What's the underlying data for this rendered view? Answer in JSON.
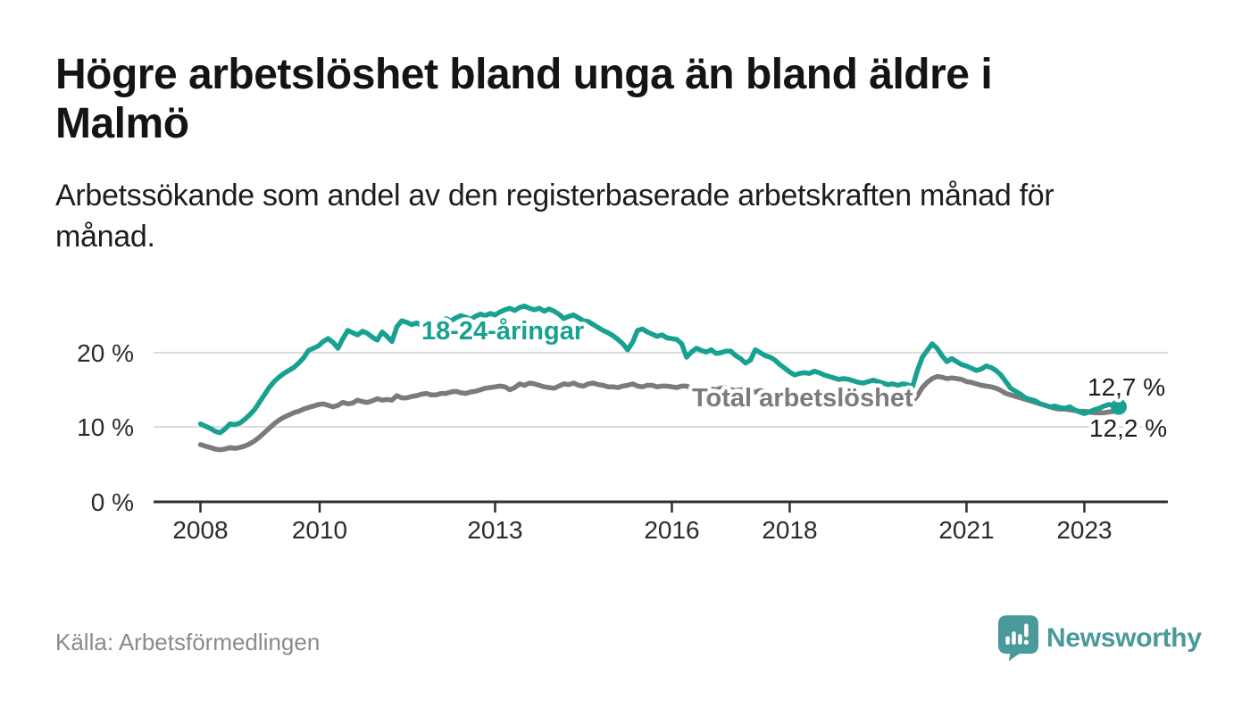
{
  "header": {
    "title": "Högre arbetslöshet bland unga än bland äldre i Malmö",
    "subtitle": "Arbetssökande som andel av den registerbaserade arbetskraften månad för månad."
  },
  "chart_data": {
    "type": "line",
    "title": "Högre arbetslöshet bland unga än bland äldre i Malmö",
    "subtitle": "Arbetssökande som andel av den registerbaserade arbetskraften månad för månad.",
    "unit": "percent",
    "grid": "horizontal",
    "legend_position": "inline-labels-on-lines",
    "x_axis": {
      "interval": "monthly",
      "start": "2008-01",
      "end": "2023-08",
      "ticks": [
        "2008",
        "2010",
        "2013",
        "2016",
        "2018",
        "2021",
        "2023"
      ]
    },
    "y_axis": {
      "tick_labels": [
        "0 %",
        "10 %",
        "20 %"
      ],
      "tick_values": [
        0,
        10,
        20
      ],
      "range": [
        0,
        27
      ]
    },
    "series": [
      {
        "id": "young",
        "name": "18-24-åringar",
        "color": "#18a191",
        "end_label": "12,7 %",
        "end_value": 12.7,
        "values": [
          10.4,
          10.1,
          9.8,
          9.4,
          9.2,
          9.7,
          10.4,
          10.3,
          10.5,
          11.0,
          11.6,
          12.3,
          13.3,
          14.3,
          15.3,
          16.1,
          16.7,
          17.2,
          17.6,
          18.0,
          18.6,
          19.3,
          20.3,
          20.6,
          20.9,
          21.5,
          21.9,
          21.4,
          20.6,
          21.9,
          23.0,
          22.7,
          22.4,
          22.9,
          22.6,
          22.1,
          21.7,
          22.8,
          22.2,
          21.5,
          23.5,
          24.3,
          24.1,
          23.8,
          24.0,
          23.7,
          23.4,
          23.8,
          23.9,
          24.2,
          24.6,
          24.3,
          24.7,
          25.0,
          24.8,
          24.5,
          24.9,
          25.2,
          25.0,
          25.3,
          25.1,
          25.5,
          25.8,
          26.0,
          25.7,
          26.1,
          26.3,
          26.0,
          25.8,
          26.0,
          25.6,
          25.9,
          25.6,
          25.2,
          24.6,
          24.9,
          25.1,
          24.7,
          24.3,
          24.2,
          23.8,
          23.4,
          23.0,
          22.7,
          22.3,
          21.8,
          21.2,
          20.4,
          21.4,
          23.0,
          23.2,
          22.8,
          22.5,
          22.2,
          22.4,
          22.0,
          21.9,
          21.8,
          21.2,
          19.4,
          20.1,
          20.6,
          20.3,
          20.1,
          20.4,
          19.9,
          20.0,
          20.2,
          20.2,
          19.6,
          19.2,
          18.6,
          19.0,
          20.4,
          20.0,
          19.6,
          19.4,
          19.0,
          18.4,
          17.9,
          17.4,
          17.0,
          17.2,
          17.3,
          17.2,
          17.5,
          17.3,
          17.0,
          16.8,
          16.6,
          16.4,
          16.5,
          16.4,
          16.2,
          16.0,
          15.9,
          16.1,
          16.3,
          16.1,
          15.9,
          15.7,
          15.8,
          15.6,
          15.8,
          15.7,
          15.4,
          17.6,
          19.4,
          20.3,
          21.2,
          20.6,
          19.6,
          18.8,
          19.2,
          18.8,
          18.4,
          18.2,
          17.9,
          17.6,
          17.8,
          18.2,
          18.0,
          17.6,
          17.0,
          16.1,
          15.2,
          14.8,
          14.4,
          13.9,
          13.7,
          13.5,
          13.1,
          12.9,
          12.7,
          12.8,
          12.6,
          12.5,
          12.7,
          12.3,
          12.0,
          11.8,
          12.0,
          12.3,
          12.5,
          12.8,
          13.0,
          12.9,
          12.7
        ]
      },
      {
        "id": "total",
        "name": "Total arbetslöshet",
        "color": "#7b7b7b",
        "end_label": "12,2 %",
        "end_value": 12.2,
        "values": [
          7.6,
          7.4,
          7.2,
          7.0,
          6.9,
          7.0,
          7.2,
          7.1,
          7.2,
          7.4,
          7.7,
          8.1,
          8.6,
          9.2,
          9.8,
          10.4,
          10.9,
          11.3,
          11.6,
          11.9,
          12.1,
          12.4,
          12.6,
          12.8,
          13.0,
          13.1,
          12.9,
          12.7,
          12.9,
          13.3,
          13.1,
          13.2,
          13.6,
          13.4,
          13.3,
          13.5,
          13.8,
          13.6,
          13.7,
          13.6,
          14.2,
          13.9,
          13.9,
          14.1,
          14.2,
          14.4,
          14.5,
          14.3,
          14.3,
          14.5,
          14.5,
          14.7,
          14.8,
          14.6,
          14.5,
          14.7,
          14.8,
          15.0,
          15.2,
          15.3,
          15.4,
          15.5,
          15.4,
          15.0,
          15.3,
          15.8,
          15.6,
          15.9,
          15.8,
          15.6,
          15.4,
          15.3,
          15.2,
          15.5,
          15.8,
          15.7,
          15.9,
          15.6,
          15.5,
          15.8,
          15.9,
          15.7,
          15.6,
          15.4,
          15.4,
          15.3,
          15.5,
          15.6,
          15.8,
          15.5,
          15.4,
          15.6,
          15.6,
          15.4,
          15.5,
          15.5,
          15.4,
          15.3,
          15.5,
          15.5,
          15.2,
          15.3,
          15.4,
          15.4,
          15.1,
          15.0,
          15.2,
          15.3,
          15.0,
          14.9,
          15.0,
          15.0,
          14.8,
          14.7,
          14.9,
          14.8,
          14.6,
          14.5,
          14.4,
          14.3,
          14.2,
          14.0,
          14.0,
          13.9,
          13.8,
          13.8,
          13.7,
          13.6,
          13.5,
          13.4,
          13.4,
          13.3,
          13.3,
          13.2,
          13.1,
          13.1,
          13.0,
          13.1,
          13.2,
          13.1,
          13.0,
          13.0,
          13.1,
          13.2,
          13.3,
          13.4,
          14.2,
          15.3,
          16.0,
          16.5,
          16.8,
          16.7,
          16.5,
          16.6,
          16.5,
          16.4,
          16.1,
          16.0,
          15.8,
          15.6,
          15.5,
          15.4,
          15.2,
          14.9,
          14.5,
          14.3,
          14.1,
          13.9,
          13.7,
          13.5,
          13.3,
          13.1,
          12.9,
          12.7,
          12.5,
          12.4,
          12.4,
          12.3,
          12.2,
          12.1,
          12.1,
          12.0,
          11.9,
          11.9,
          11.9,
          12.0,
          12.1,
          12.2
        ]
      }
    ]
  },
  "footer": {
    "source": "Källa: Arbetsförmedlingen",
    "brand": "Newsworthy",
    "brand_color": "#4a999b",
    "logo_icon": "speech-bubble-bar-chart"
  }
}
